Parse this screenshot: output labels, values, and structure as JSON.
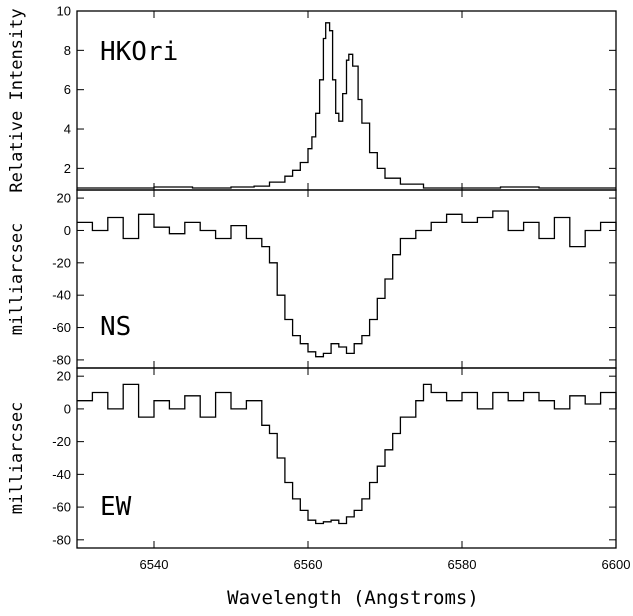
{
  "chart_data": [
    {
      "type": "line",
      "id": "intensity",
      "title": "HKOri",
      "ylabel": "Relative Intensity",
      "ylim": [
        0.9,
        10
      ],
      "yticks": [
        2,
        4,
        6,
        8,
        10
      ],
      "series": [
        {
          "x": [
            6530,
            6535,
            6540,
            6545,
            6550,
            6553,
            6555,
            6557,
            6558,
            6559,
            6560,
            6560.5,
            6561,
            6561.5,
            6562,
            6562.3,
            6562.8,
            6563.2,
            6563.6,
            6564,
            6564.5,
            6565,
            6565.3,
            6565.8,
            6566.5,
            6567,
            6568,
            6569,
            6570,
            6572,
            6575,
            6580,
            6585,
            6590,
            6595,
            6600
          ],
          "y": [
            1.0,
            1.0,
            1.05,
            1.0,
            1.05,
            1.1,
            1.3,
            1.6,
            1.9,
            2.3,
            3.0,
            3.6,
            4.8,
            6.5,
            8.6,
            9.4,
            9.0,
            6.5,
            4.8,
            4.4,
            5.8,
            7.5,
            7.8,
            7.2,
            5.5,
            4.3,
            2.8,
            2.0,
            1.5,
            1.2,
            1.0,
            1.0,
            1.05,
            1.0,
            1.0,
            1.0
          ]
        }
      ]
    },
    {
      "type": "line",
      "id": "ns",
      "title": "NS",
      "ylabel": "milliarcsec",
      "ylim": [
        -85,
        25
      ],
      "yticks": [
        -80,
        -60,
        -40,
        -20,
        0,
        20
      ],
      "series": [
        {
          "x": [
            6530,
            6532,
            6534,
            6536,
            6538,
            6540,
            6542,
            6544,
            6546,
            6548,
            6550,
            6552,
            6554,
            6555,
            6556,
            6557,
            6558,
            6559,
            6560,
            6561,
            6562,
            6563,
            6564,
            6565,
            6566,
            6567,
            6568,
            6569,
            6570,
            6571,
            6572,
            6574,
            6576,
            6578,
            6580,
            6582,
            6584,
            6586,
            6588,
            6590,
            6592,
            6594,
            6596,
            6598,
            6600
          ],
          "y": [
            5,
            0,
            8,
            -5,
            10,
            2,
            -2,
            5,
            0,
            -5,
            3,
            -5,
            -10,
            -20,
            -40,
            -55,
            -65,
            -70,
            -75,
            -78,
            -76,
            -70,
            -72,
            -76,
            -70,
            -65,
            -55,
            -42,
            -30,
            -15,
            -5,
            0,
            5,
            10,
            5,
            8,
            12,
            0,
            5,
            -5,
            8,
            -10,
            0,
            5,
            0
          ]
        }
      ]
    },
    {
      "type": "line",
      "id": "ew",
      "title": "EW",
      "ylabel": "milliarcsec",
      "xlabel": "Wavelength (Angstroms)",
      "xlim": [
        6530,
        6600
      ],
      "xticks": [
        6540,
        6560,
        6580,
        6600
      ],
      "ylim": [
        -85,
        25
      ],
      "yticks": [
        -80,
        -60,
        -40,
        -20,
        0,
        20
      ],
      "series": [
        {
          "x": [
            6530,
            6532,
            6534,
            6536,
            6538,
            6540,
            6542,
            6544,
            6546,
            6548,
            6550,
            6552,
            6554,
            6555,
            6556,
            6557,
            6558,
            6559,
            6560,
            6561,
            6562,
            6563,
            6564,
            6565,
            6566,
            6567,
            6568,
            6569,
            6570,
            6571,
            6572,
            6574,
            6575,
            6576,
            6578,
            6580,
            6582,
            6584,
            6586,
            6588,
            6590,
            6592,
            6594,
            6596,
            6598,
            6600
          ],
          "y": [
            5,
            10,
            0,
            15,
            -5,
            5,
            0,
            8,
            -5,
            10,
            0,
            5,
            -10,
            -15,
            -30,
            -45,
            -55,
            -62,
            -68,
            -70,
            -69,
            -68,
            -70,
            -66,
            -62,
            -55,
            -45,
            -35,
            -25,
            -15,
            -5,
            5,
            15,
            10,
            5,
            10,
            0,
            10,
            5,
            10,
            5,
            0,
            8,
            3,
            10,
            0
          ]
        }
      ]
    }
  ]
}
